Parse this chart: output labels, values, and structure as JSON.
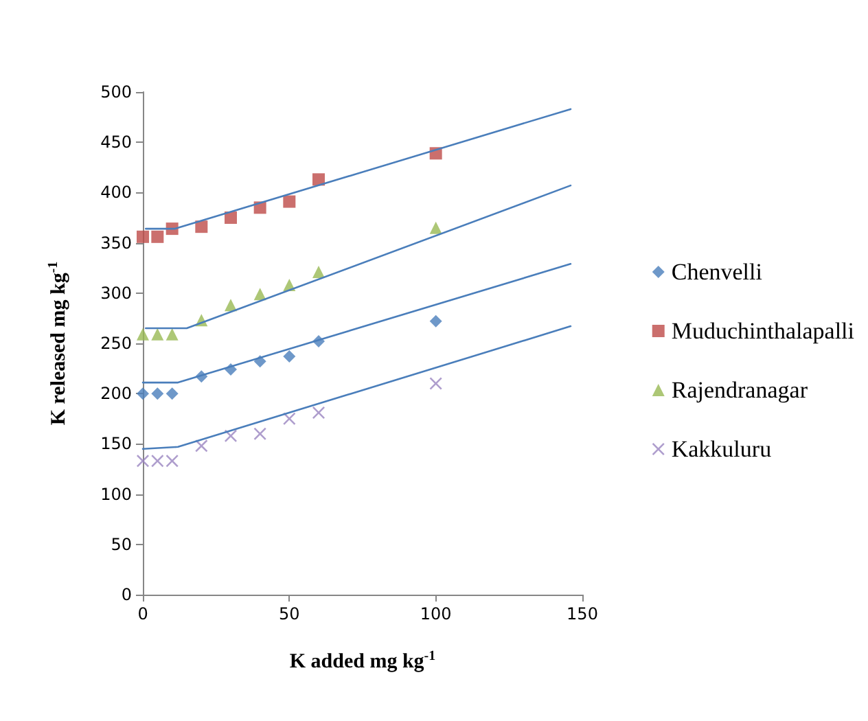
{
  "chart_data": {
    "type": "scatter",
    "xlabel": "K added mg kg$^{-1}$",
    "ylabel": "K released mg kg$^{-1}$",
    "x": [
      0,
      5,
      10,
      20,
      30,
      40,
      50,
      60,
      100
    ],
    "xlim": [
      0,
      150
    ],
    "xticks": [
      0,
      50,
      100,
      150
    ],
    "ylim": [
      0,
      500
    ],
    "yticks": [
      0,
      50,
      100,
      150,
      200,
      250,
      300,
      350,
      400,
      450,
      500
    ],
    "grid": false,
    "legend": "right",
    "series": [
      {
        "name": "Chenvelli",
        "color": "#4a7ebb",
        "marker": "diamond",
        "values": [
          200,
          200,
          200,
          217,
          224,
          232,
          237,
          252,
          272
        ]
      },
      {
        "name": "Muduchinthalapalli",
        "color": "#be4b48",
        "marker": "square",
        "values": [
          356,
          356,
          364,
          366,
          375,
          385,
          391,
          413,
          439
        ]
      },
      {
        "name": "Rajendranagar",
        "color": "#98b954",
        "marker": "triangle",
        "values": [
          259,
          259,
          259,
          273,
          288,
          299,
          308,
          321,
          365
        ]
      },
      {
        "name": "Kakkuluru",
        "color": "#9a85c0",
        "marker": "cross",
        "values": [
          133,
          133,
          133,
          148,
          158,
          160,
          175,
          181,
          210
        ]
      },
      {
        "type": "line",
        "color": "#4a7ebb",
        "line_style": "solid",
        "marker": "none",
        "x": [
          0,
          12,
          146
        ],
        "values": [
          211,
          211,
          329
        ]
      },
      {
        "type": "line",
        "color": "#4a7ebb",
        "line_style": "solid",
        "marker": "none",
        "x": [
          1,
          11,
          146
        ],
        "values": [
          364,
          364,
          483
        ]
      },
      {
        "type": "line",
        "color": "#4a7ebb",
        "line_style": "solid",
        "marker": "none",
        "x": [
          1,
          15,
          146
        ],
        "values": [
          265,
          265,
          407
        ]
      },
      {
        "type": "line",
        "color": "#4a7ebb",
        "line_style": "solid",
        "marker": "none",
        "x": [
          0,
          12,
          146
        ],
        "values": [
          145,
          147,
          267
        ]
      }
    ]
  }
}
